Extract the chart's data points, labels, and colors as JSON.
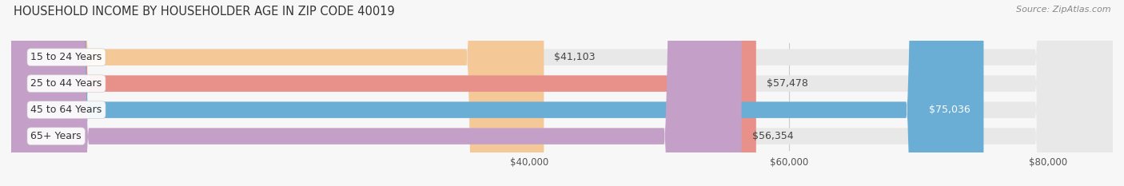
{
  "title": "HOUSEHOLD INCOME BY HOUSEHOLDER AGE IN ZIP CODE 40019",
  "source": "Source: ZipAtlas.com",
  "categories": [
    "15 to 24 Years",
    "25 to 44 Years",
    "45 to 64 Years",
    "65+ Years"
  ],
  "values": [
    41103,
    57478,
    75036,
    56354
  ],
  "bar_colors": [
    "#f5c897",
    "#e8908a",
    "#6aaed6",
    "#c4a0c8"
  ],
  "label_colors": [
    "#555555",
    "#555555",
    "#ffffff",
    "#555555"
  ],
  "xmin": 0,
  "xmax": 85000,
  "xticks": [
    40000,
    60000,
    80000
  ],
  "xtick_labels": [
    "$40,000",
    "$60,000",
    "$80,000"
  ],
  "bar_height": 0.62,
  "background_color": "#f7f7f7",
  "bar_bg_color": "#e8e8e8",
  "title_fontsize": 10.5,
  "source_fontsize": 8,
  "label_fontsize": 9,
  "category_fontsize": 9,
  "tick_fontsize": 8.5,
  "rounding_size": 6000
}
